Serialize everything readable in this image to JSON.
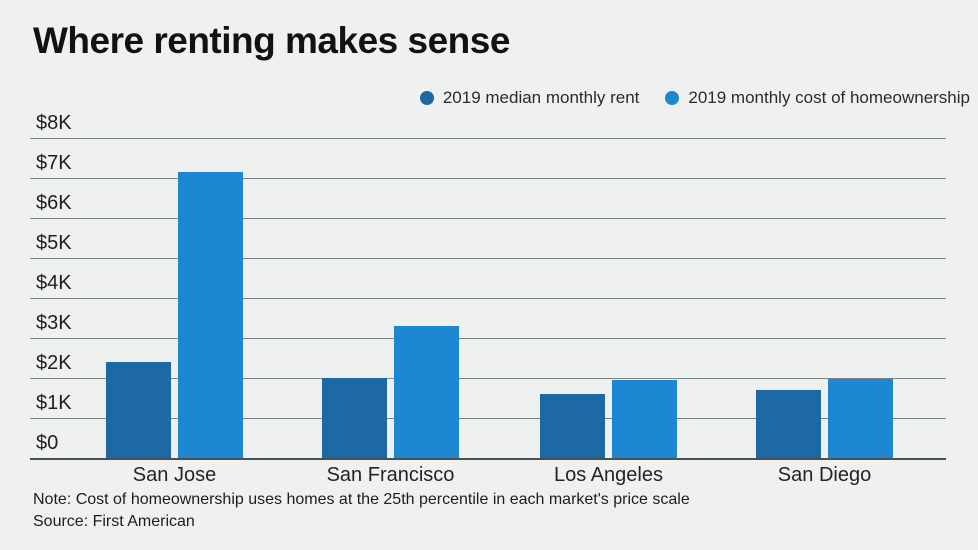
{
  "title": "Where renting makes sense",
  "legend": {
    "items": [
      {
        "label": "2019 median monthly rent",
        "color": "#1d69a3"
      },
      {
        "label": "2019 monthly cost of homeownership",
        "color": "#1e87d2"
      }
    ]
  },
  "footer": {
    "note": "Note: Cost of homeownership uses homes at the 25th percentile in each market's price scale",
    "source": "Source: First American"
  },
  "colors": {
    "background": "#eff1f0",
    "rent_bar": "#1d69a3",
    "ownership_bar": "#1e87d2",
    "gridline": "#7d8282",
    "baseline": "#4b5153"
  },
  "chart_data": {
    "type": "bar",
    "categories": [
      "San Jose",
      "San Francisco",
      "Los Angeles",
      "San Diego"
    ],
    "series": [
      {
        "name": "2019 median monthly rent",
        "color": "#1d69a3",
        "values": [
          2400,
          2000,
          1600,
          1700
        ]
      },
      {
        "name": "2019 monthly cost of homeownership",
        "color": "#1e87d2",
        "values": [
          7150,
          3300,
          1950,
          1975
        ]
      }
    ],
    "title": "Where renting makes sense",
    "xlabel": "",
    "ylabel": "",
    "ylim": [
      0,
      8000
    ],
    "ytick_step": 1000,
    "ytick_labels": [
      "$0",
      "$1K",
      "$2K",
      "$3K",
      "$4K",
      "$5K",
      "$6K",
      "$7K",
      "$8K"
    ],
    "grid": true,
    "legend_position": "top-right"
  }
}
